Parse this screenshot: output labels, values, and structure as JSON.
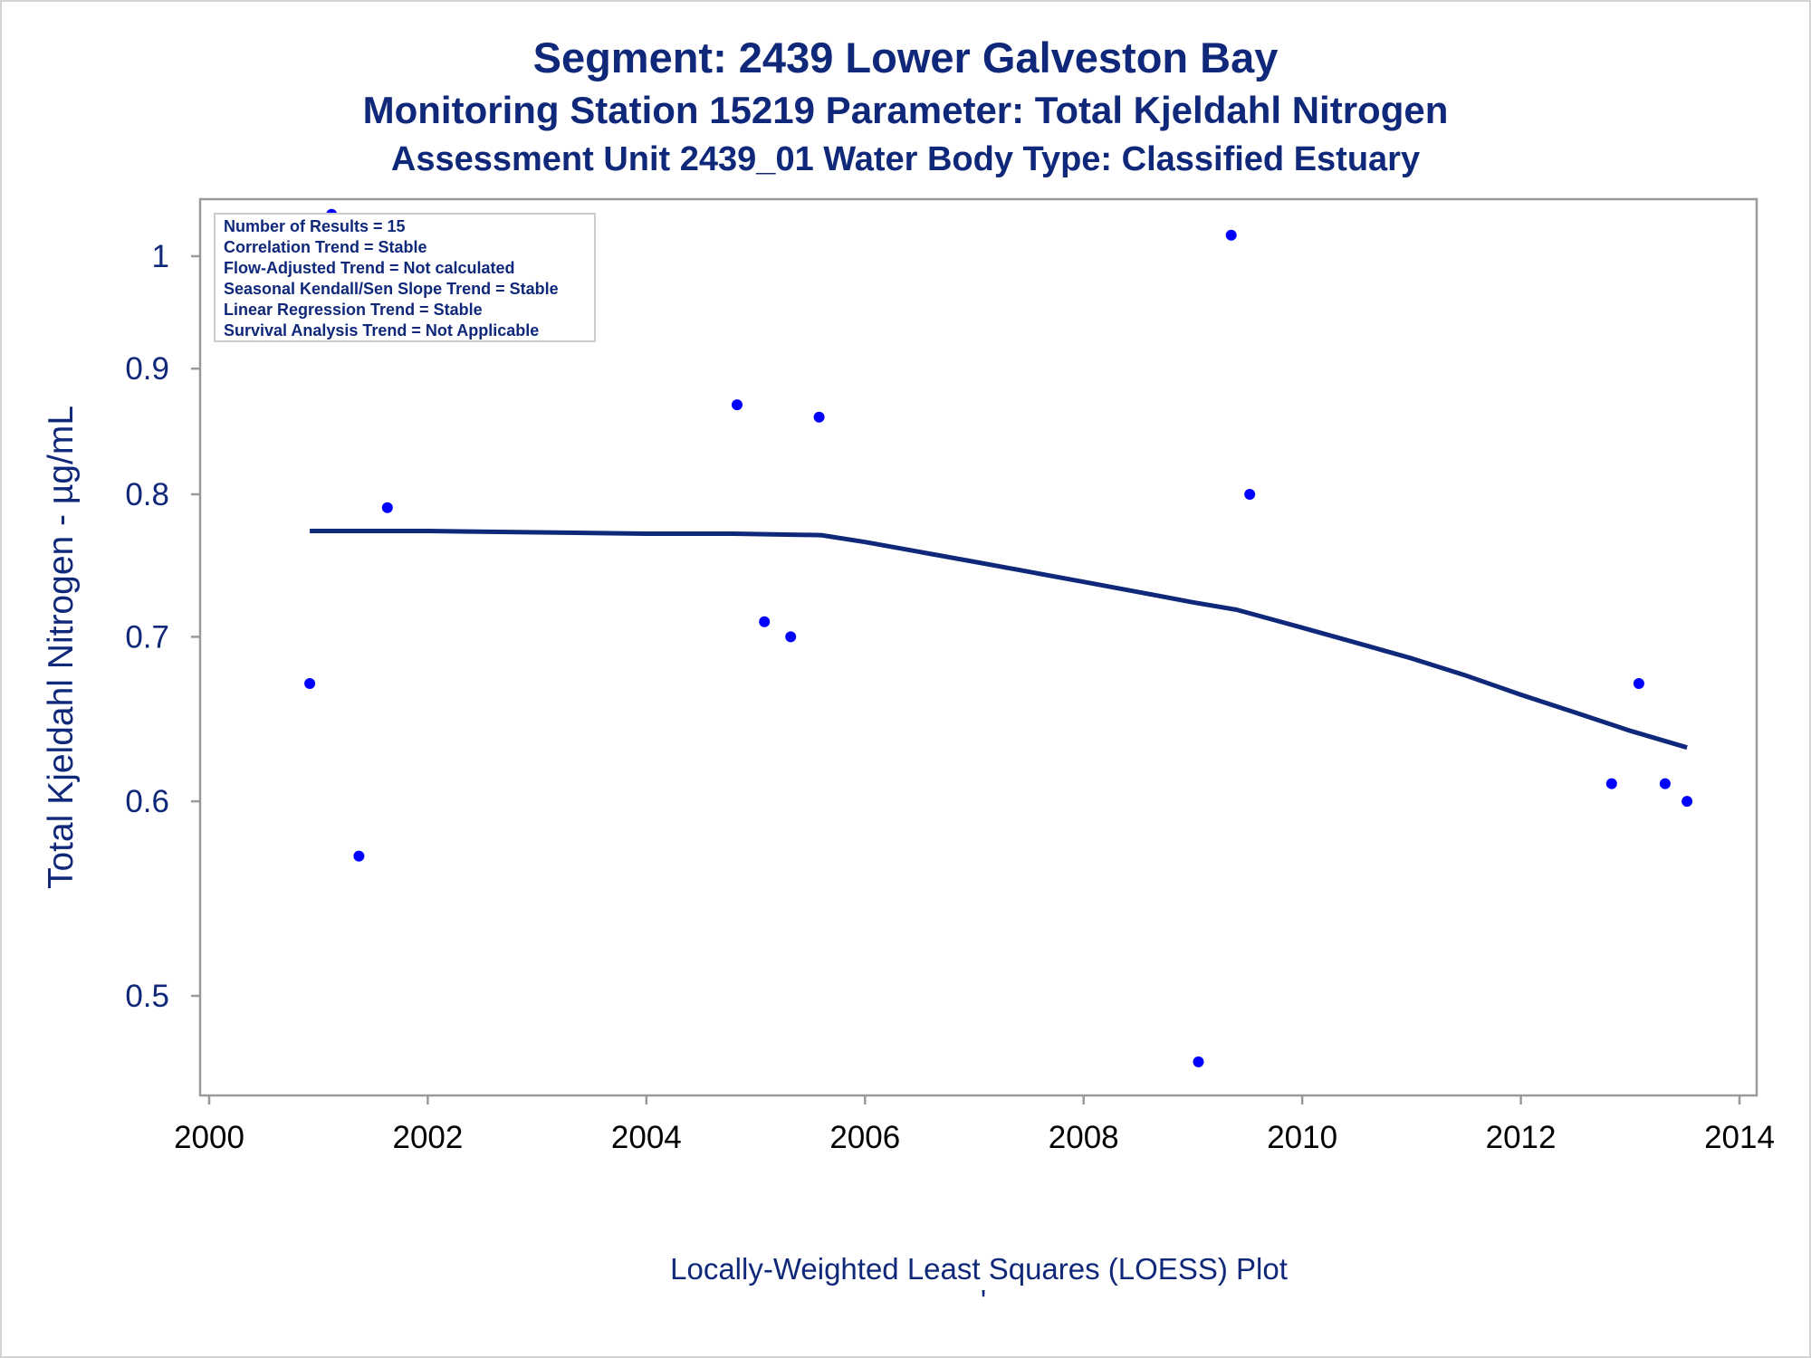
{
  "titles": {
    "line1": "Segment: 2439  Lower Galveston Bay",
    "line2": "Monitoring Station 15219 Parameter: Total Kjeldahl Nitrogen",
    "line3": "Assessment Unit 2439_01   Water Body Type: Classified Estuary"
  },
  "inset": {
    "lines": [
      "Number of Results = 15",
      "Correlation Trend = Stable",
      "Flow-Adjusted Trend = Not calculated",
      "Seasonal Kendall/Sen Slope Trend = Stable",
      "Linear Regression Trend = Stable",
      "Survival Analysis Trend = Not Applicable"
    ]
  },
  "footnote": {
    "text": "Locally-Weighted Least Squares (LOESS) Plot",
    "mark": "'"
  },
  "colors": {
    "text": "#10287a",
    "points": "#0000ff",
    "loess": "#10287a",
    "frame": "#999999"
  },
  "chart_data": {
    "type": "scatter",
    "title": "Segment: 2439  Lower Galveston Bay",
    "xlabel": "",
    "ylabel": "Total Kjeldahl Nitrogen -  µg/mL",
    "y_scale": "log",
    "xlim": [
      2000,
      2014
    ],
    "ylim": [
      0.46,
      1.04
    ],
    "x_ticks": [
      2000,
      2002,
      2004,
      2006,
      2008,
      2010,
      2012,
      2014
    ],
    "y_ticks": [
      0.5,
      0.6,
      0.7,
      0.8,
      0.9,
      1
    ],
    "series": [
      {
        "kind": "points",
        "points": [
          {
            "x": 2000.92,
            "y": 0.67
          },
          {
            "x": 2001.12,
            "y": 1.04
          },
          {
            "x": 2001.37,
            "y": 0.57
          },
          {
            "x": 2001.63,
            "y": 0.79
          },
          {
            "x": 2004.83,
            "y": 0.87
          },
          {
            "x": 2005.08,
            "y": 0.71
          },
          {
            "x": 2005.32,
            "y": 0.7
          },
          {
            "x": 2005.58,
            "y": 0.86
          },
          {
            "x": 2009.05,
            "y": 0.47
          },
          {
            "x": 2009.35,
            "y": 1.02
          },
          {
            "x": 2009.52,
            "y": 0.8
          },
          {
            "x": 2012.83,
            "y": 0.61
          },
          {
            "x": 2013.08,
            "y": 0.67
          },
          {
            "x": 2013.32,
            "y": 0.61
          },
          {
            "x": 2013.52,
            "y": 0.6
          }
        ]
      },
      {
        "kind": "loess",
        "points": [
          {
            "x": 2000.92,
            "y": 0.773
          },
          {
            "x": 2002.0,
            "y": 0.773
          },
          {
            "x": 2003.0,
            "y": 0.772
          },
          {
            "x": 2004.0,
            "y": 0.771
          },
          {
            "x": 2004.8,
            "y": 0.771
          },
          {
            "x": 2005.6,
            "y": 0.77
          },
          {
            "x": 2006.0,
            "y": 0.765
          },
          {
            "x": 2006.5,
            "y": 0.758
          },
          {
            "x": 2007.0,
            "y": 0.751
          },
          {
            "x": 2007.5,
            "y": 0.744
          },
          {
            "x": 2008.0,
            "y": 0.737
          },
          {
            "x": 2008.5,
            "y": 0.73
          },
          {
            "x": 2009.0,
            "y": 0.723
          },
          {
            "x": 2009.4,
            "y": 0.718
          },
          {
            "x": 2009.7,
            "y": 0.712
          },
          {
            "x": 2010.0,
            "y": 0.706
          },
          {
            "x": 2010.5,
            "y": 0.696
          },
          {
            "x": 2011.0,
            "y": 0.686
          },
          {
            "x": 2011.5,
            "y": 0.675
          },
          {
            "x": 2012.0,
            "y": 0.663
          },
          {
            "x": 2012.5,
            "y": 0.652
          },
          {
            "x": 2013.0,
            "y": 0.641
          },
          {
            "x": 2013.52,
            "y": 0.631
          }
        ]
      }
    ]
  }
}
